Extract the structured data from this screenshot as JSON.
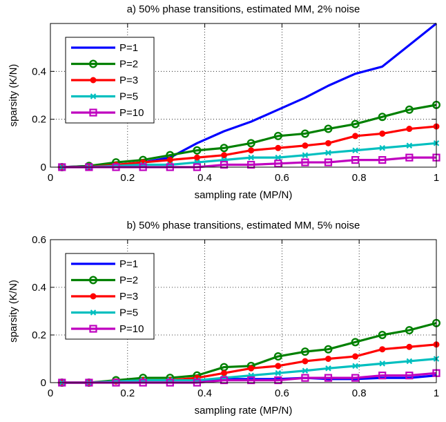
{
  "chart_data": [
    {
      "type": "line",
      "title": "a) 50% phase transitions, estimated MM, 2% noise",
      "xlabel": "sampling rate (MP/N)",
      "ylabel": "sparsity (K/N)",
      "xlim": [
        0,
        1
      ],
      "ylim": [
        0,
        0.6
      ],
      "xticks": [
        0,
        0.2,
        0.4,
        0.6,
        0.8,
        1
      ],
      "xtick_labels": [
        "0",
        "0.2",
        "0.4",
        "0.6",
        "0.8",
        "1"
      ],
      "yticks": [
        0,
        0.2,
        0.4
      ],
      "ytick_labels": [
        "0",
        "0.2",
        "0.4"
      ],
      "grid": true,
      "legend_position": "top-left",
      "x": [
        0.03,
        0.1,
        0.17,
        0.24,
        0.31,
        0.38,
        0.45,
        0.52,
        0.59,
        0.66,
        0.72,
        0.79,
        0.86,
        0.93,
        1.0
      ],
      "series": [
        {
          "name": "P=1",
          "color": "#0000ff",
          "marker": "none",
          "values": [
            0.0,
            0.005,
            0.01,
            0.02,
            0.04,
            0.1,
            0.15,
            0.19,
            0.24,
            0.29,
            0.34,
            0.39,
            0.42,
            0.51,
            0.6
          ]
        },
        {
          "name": "P=2",
          "color": "#008000",
          "marker": "circle",
          "values": [
            0.0,
            0.005,
            0.02,
            0.03,
            0.05,
            0.07,
            0.08,
            0.1,
            0.13,
            0.14,
            0.16,
            0.18,
            0.21,
            0.24,
            0.26
          ]
        },
        {
          "name": "P=3",
          "color": "#ff0000",
          "marker": "dot",
          "values": [
            0.0,
            0.0,
            0.01,
            0.02,
            0.03,
            0.04,
            0.05,
            0.07,
            0.08,
            0.09,
            0.1,
            0.13,
            0.14,
            0.16,
            0.17
          ]
        },
        {
          "name": "P=5",
          "color": "#00bfbf",
          "marker": "x",
          "values": [
            0.0,
            0.0,
            0.005,
            0.01,
            0.01,
            0.02,
            0.03,
            0.04,
            0.04,
            0.05,
            0.06,
            0.07,
            0.08,
            0.09,
            0.1
          ]
        },
        {
          "name": "P=10",
          "color": "#bf00bf",
          "marker": "square",
          "values": [
            0.0,
            0.0,
            0.0,
            0.0,
            0.0,
            0.0,
            0.01,
            0.01,
            0.015,
            0.02,
            0.02,
            0.03,
            0.03,
            0.04,
            0.04
          ]
        }
      ]
    },
    {
      "type": "line",
      "title": "b) 50% phase transitions, estimated MM, 5% noise",
      "xlabel": "sampling rate (MP/N)",
      "ylabel": "sparsity (K/N)",
      "xlim": [
        0,
        1
      ],
      "ylim": [
        0,
        0.6
      ],
      "xticks": [
        0,
        0.2,
        0.4,
        0.6,
        0.8,
        1
      ],
      "xtick_labels": [
        "0",
        "0.2",
        "0.4",
        "0.6",
        "0.8",
        "1"
      ],
      "yticks": [
        0,
        0.2,
        0.4,
        0.6
      ],
      "ytick_labels": [
        "0",
        "0.2",
        "0.4",
        "0.6"
      ],
      "grid": true,
      "legend_position": "top-left",
      "x": [
        0.03,
        0.1,
        0.17,
        0.24,
        0.31,
        0.38,
        0.45,
        0.52,
        0.59,
        0.66,
        0.72,
        0.79,
        0.86,
        0.93,
        1.0
      ],
      "series": [
        {
          "name": "P=1",
          "color": "#0000ff",
          "marker": "none",
          "values": [
            0.0,
            0.0,
            0.005,
            0.01,
            0.01,
            0.01,
            0.015,
            0.015,
            0.015,
            0.02,
            0.015,
            0.015,
            0.02,
            0.02,
            0.03
          ]
        },
        {
          "name": "P=2",
          "color": "#008000",
          "marker": "circle",
          "values": [
            0.0,
            0.0,
            0.01,
            0.02,
            0.02,
            0.03,
            0.065,
            0.07,
            0.11,
            0.13,
            0.14,
            0.17,
            0.2,
            0.22,
            0.25
          ]
        },
        {
          "name": "P=3",
          "color": "#ff0000",
          "marker": "dot",
          "values": [
            0.0,
            0.0,
            0.005,
            0.01,
            0.01,
            0.02,
            0.04,
            0.06,
            0.07,
            0.09,
            0.1,
            0.11,
            0.14,
            0.15,
            0.16
          ]
        },
        {
          "name": "P=5",
          "color": "#00bfbf",
          "marker": "x",
          "values": [
            0.0,
            0.0,
            0.005,
            0.01,
            0.01,
            0.01,
            0.02,
            0.03,
            0.04,
            0.05,
            0.06,
            0.07,
            0.08,
            0.09,
            0.1
          ]
        },
        {
          "name": "P=10",
          "color": "#bf00bf",
          "marker": "square",
          "values": [
            0.0,
            0.0,
            0.0,
            0.0,
            0.0,
            0.0,
            0.01,
            0.01,
            0.01,
            0.02,
            0.02,
            0.02,
            0.03,
            0.03,
            0.04
          ]
        }
      ]
    }
  ]
}
